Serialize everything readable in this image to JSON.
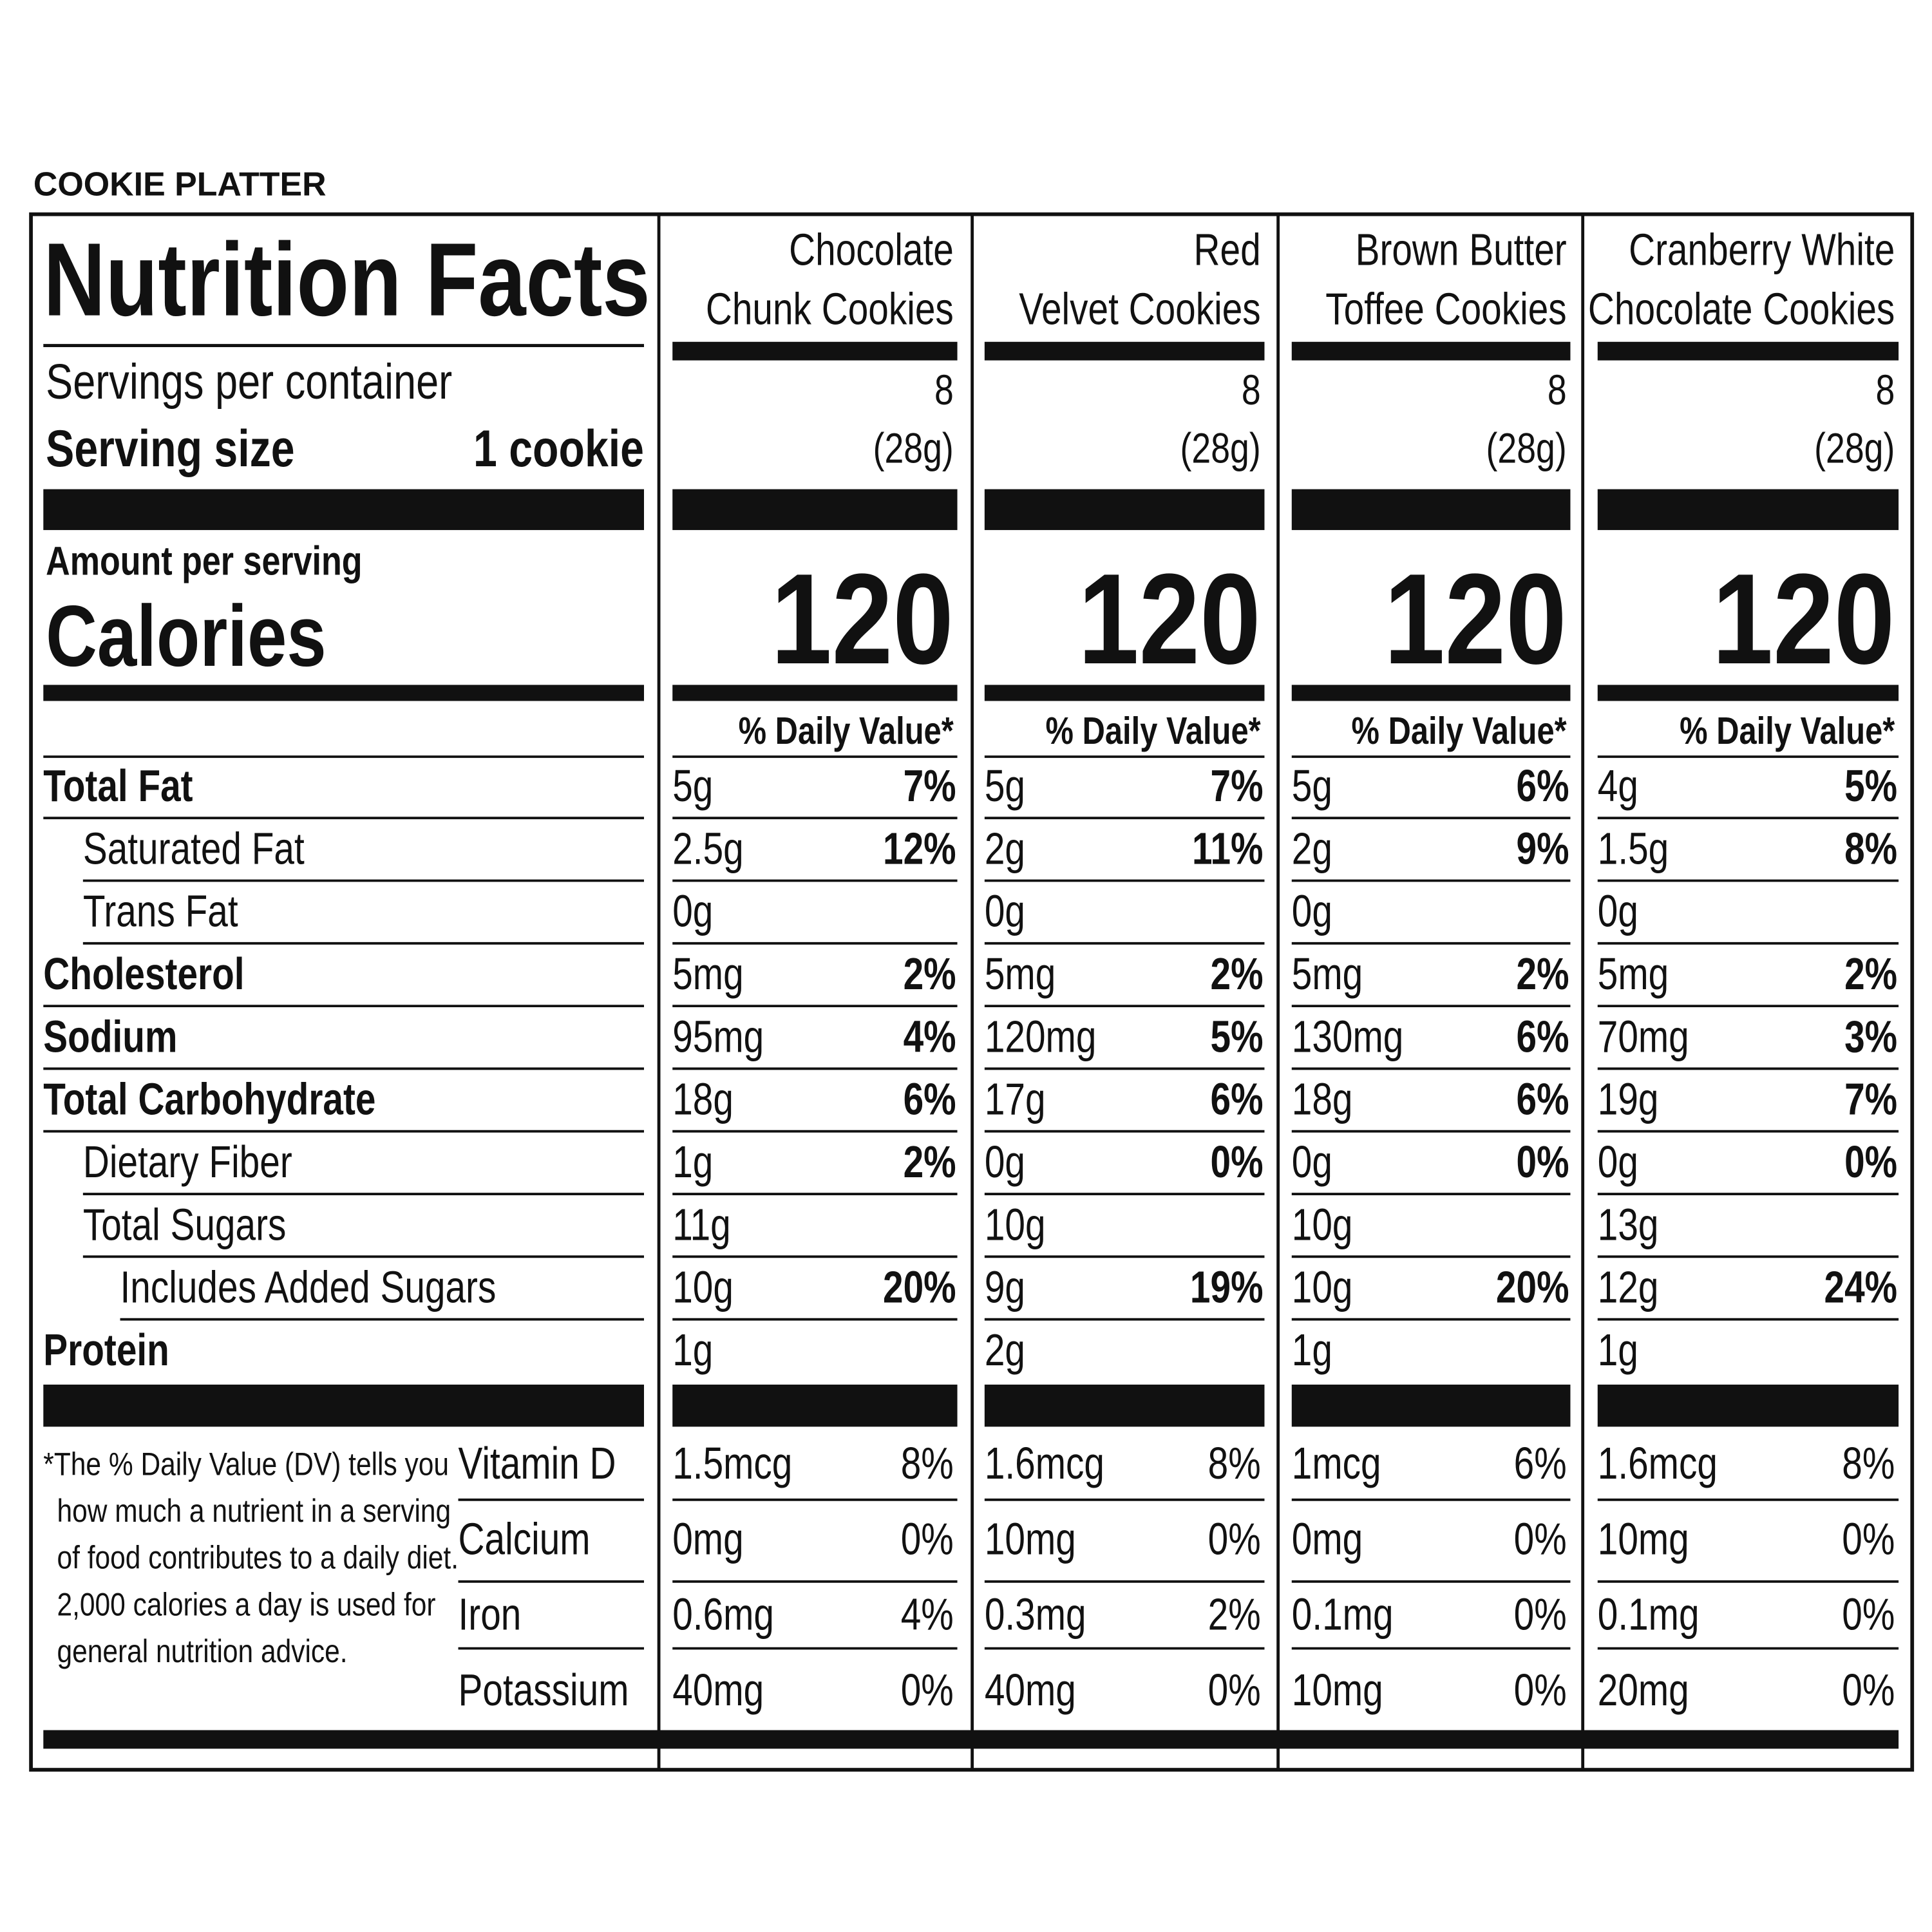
{
  "header": "COOKIE PLATTER",
  "title": "Nutrition Facts",
  "servings_label": "Servings per container",
  "serving_size_label": "Serving size",
  "serving_size": "1 cookie",
  "amount_label": "Amount per serving",
  "calories_label": "Calories",
  "nutrients": [
    {
      "label": "Total Fat",
      "style": "bold"
    },
    {
      "label": "Saturated Fat",
      "style": "indent"
    },
    {
      "label": "Trans Fat",
      "style": "indent"
    },
    {
      "label": "Cholesterol",
      "style": "bold"
    },
    {
      "label": "Sodium",
      "style": "bold"
    },
    {
      "label": "Total Carbohydrate",
      "style": "bold"
    },
    {
      "label": "Dietary Fiber",
      "style": "indent"
    },
    {
      "label": "Total Sugars",
      "style": "indent"
    },
    {
      "label": "Includes Added Sugars",
      "style": "indent2"
    },
    {
      "label": "Protein",
      "style": "bold"
    }
  ],
  "vitamins": [
    "Vitamin D",
    "Calcium",
    "Iron",
    "Potassium"
  ],
  "footnote_lines": [
    "*The % Daily Value (DV) tells you",
    "how much a nutrient in a serving",
    "of food contributes to a daily diet.",
    "2,000 calories a day is used for",
    "general nutrition advice."
  ],
  "products": [
    {
      "name_lines": [
        "Chocolate",
        "Chunk Cookies"
      ],
      "servings": "8",
      "serving_size": "(28g)",
      "calories": "120",
      "dv_label": "% Daily Value*",
      "facts": [
        [
          "5g",
          "7%"
        ],
        [
          "2.5g",
          "12%"
        ],
        [
          "0g",
          null
        ],
        [
          "5mg",
          "2%"
        ],
        [
          "95mg",
          "4%"
        ],
        [
          "18g",
          "6%"
        ],
        [
          "1g",
          "2%"
        ],
        [
          "11g",
          null
        ],
        [
          "10g",
          "20%"
        ],
        [
          "1g",
          null
        ]
      ],
      "vitamin_facts": [
        [
          "1.5mcg",
          "8%"
        ],
        [
          "0mg",
          "0%"
        ],
        [
          "0.6mg",
          "4%"
        ],
        [
          "40mg",
          "0%"
        ]
      ]
    },
    {
      "name_lines": [
        "Red",
        "Velvet Cookies"
      ],
      "servings": "8",
      "serving_size": "(28g)",
      "calories": "120",
      "dv_label": "% Daily Value*",
      "facts": [
        [
          "5g",
          "7%"
        ],
        [
          "2g",
          "11%"
        ],
        [
          "0g",
          null
        ],
        [
          "5mg",
          "2%"
        ],
        [
          "120mg",
          "5%"
        ],
        [
          "17g",
          "6%"
        ],
        [
          "0g",
          "0%"
        ],
        [
          "10g",
          null
        ],
        [
          "9g",
          "19%"
        ],
        [
          "2g",
          null
        ]
      ],
      "vitamin_facts": [
        [
          "1.6mcg",
          "8%"
        ],
        [
          "10mg",
          "0%"
        ],
        [
          "0.3mg",
          "2%"
        ],
        [
          "40mg",
          "0%"
        ]
      ]
    },
    {
      "name_lines": [
        "Brown Butter",
        "Toffee Cookies"
      ],
      "servings": "8",
      "serving_size": "(28g)",
      "calories": "120",
      "dv_label": "% Daily Value*",
      "facts": [
        [
          "5g",
          "6%"
        ],
        [
          "2g",
          "9%"
        ],
        [
          "0g",
          null
        ],
        [
          "5mg",
          "2%"
        ],
        [
          "130mg",
          "6%"
        ],
        [
          "18g",
          "6%"
        ],
        [
          "0g",
          "0%"
        ],
        [
          "10g",
          null
        ],
        [
          "10g",
          "20%"
        ],
        [
          "1g",
          null
        ]
      ],
      "vitamin_facts": [
        [
          "1mcg",
          "6%"
        ],
        [
          "0mg",
          "0%"
        ],
        [
          "0.1mg",
          "0%"
        ],
        [
          "10mg",
          "0%"
        ]
      ]
    },
    {
      "name_lines": [
        "Cranberry White",
        "Chocolate Cookies"
      ],
      "servings": "8",
      "serving_size": "(28g)",
      "calories": "120",
      "dv_label": "% Daily Value*",
      "facts": [
        [
          "4g",
          "5%"
        ],
        [
          "1.5g",
          "8%"
        ],
        [
          "0g",
          null
        ],
        [
          "5mg",
          "2%"
        ],
        [
          "70mg",
          "3%"
        ],
        [
          "19g",
          "7%"
        ],
        [
          "0g",
          "0%"
        ],
        [
          "13g",
          null
        ],
        [
          "12g",
          "24%"
        ],
        [
          "1g",
          null
        ]
      ],
      "vitamin_facts": [
        [
          "1.6mcg",
          "8%"
        ],
        [
          "10mg",
          "0%"
        ],
        [
          "0.1mg",
          "0%"
        ],
        [
          "20mg",
          "0%"
        ]
      ]
    }
  ]
}
